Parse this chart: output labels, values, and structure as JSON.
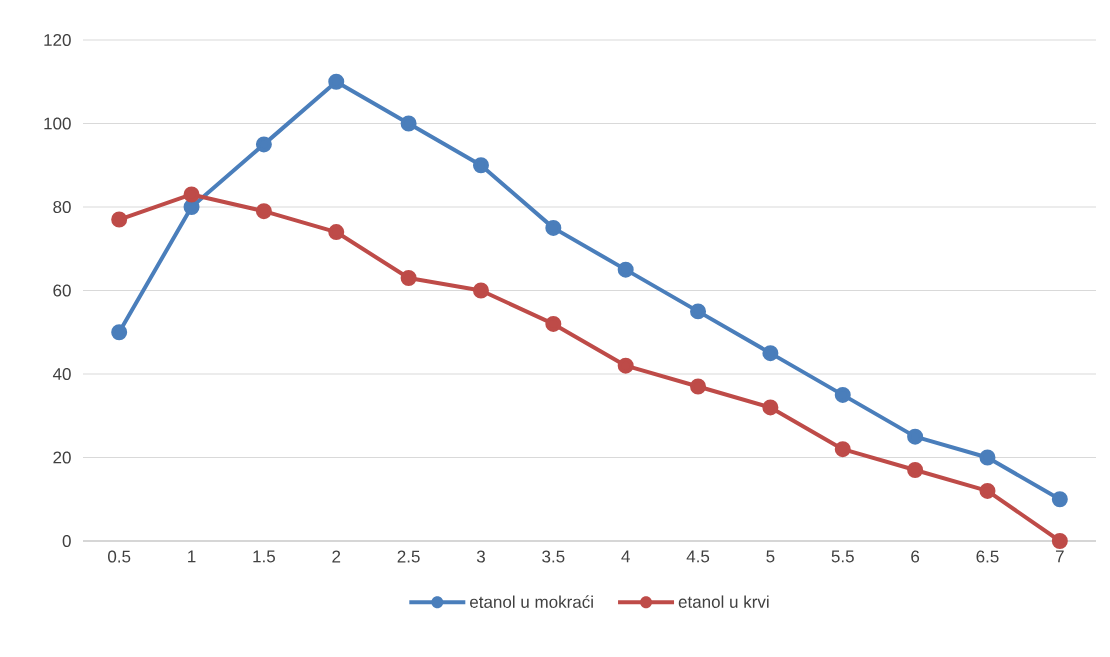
{
  "chart_data": {
    "type": "line",
    "categories": [
      "0.5",
      "1",
      "1.5",
      "2",
      "2.5",
      "3",
      "3.5",
      "4",
      "4.5",
      "5",
      "5.5",
      "6",
      "6.5",
      "7"
    ],
    "series": [
      {
        "name": "etanol u mokraći",
        "color": "#4a7ebb",
        "values": [
          50,
          80,
          95,
          110,
          100,
          90,
          75,
          65,
          55,
          45,
          35,
          25,
          20,
          10
        ]
      },
      {
        "name": "etanol u krvi",
        "color": "#be4b48",
        "values": [
          77,
          83,
          79,
          74,
          63,
          60,
          52,
          42,
          37,
          32,
          22,
          17,
          12,
          0
        ]
      }
    ],
    "ylim": [
      0,
      120
    ],
    "yticks": [
      0,
      20,
      40,
      60,
      80,
      100,
      120
    ],
    "grid": "y",
    "legend": "bottom",
    "marker": "circle",
    "line_style": "solid"
  }
}
